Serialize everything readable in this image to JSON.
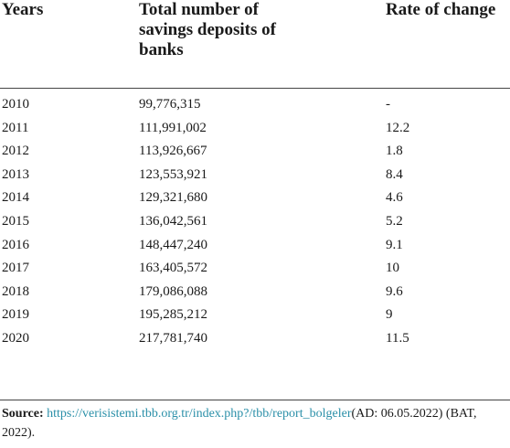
{
  "table": {
    "headers": {
      "years": "Years",
      "total_line1": "Total number of",
      "total_line2": "savings deposits of",
      "total_line3": "banks",
      "rate": "Rate of change"
    },
    "rows": [
      {
        "year": "2010",
        "total": "99,776,315",
        "rate": "-"
      },
      {
        "year": "2011",
        "total": "111,991,002",
        "rate": "12.2"
      },
      {
        "year": "2012",
        "total": "113,926,667",
        "rate": "1.8"
      },
      {
        "year": "2013",
        "total": "123,553,921",
        "rate": "8.4"
      },
      {
        "year": "2014",
        "total": "129,321,680",
        "rate": "4.6"
      },
      {
        "year": "2015",
        "total": "136,042,561",
        "rate": "5.2"
      },
      {
        "year": "2016",
        "total": "148,447,240",
        "rate": "9.1"
      },
      {
        "year": "2017",
        "total": "163,405,572",
        "rate": "10"
      },
      {
        "year": "2018",
        "total": "179,086,088",
        "rate": "9.6"
      },
      {
        "year": "2019",
        "total": "195,285,212",
        "rate": "9"
      },
      {
        "year": "2020",
        "total": "217,781,740",
        "rate": "11.5"
      }
    ]
  },
  "source": {
    "label": "Source:",
    "link_text": "https://verisistemi.tbb.org.tr/index.php?/tbb/report_bolgeler",
    "suffix": "(AD: 06.05.2022) (BAT, 2022)."
  },
  "colors": {
    "link": "#2a8fa8",
    "rule": "#444444"
  }
}
